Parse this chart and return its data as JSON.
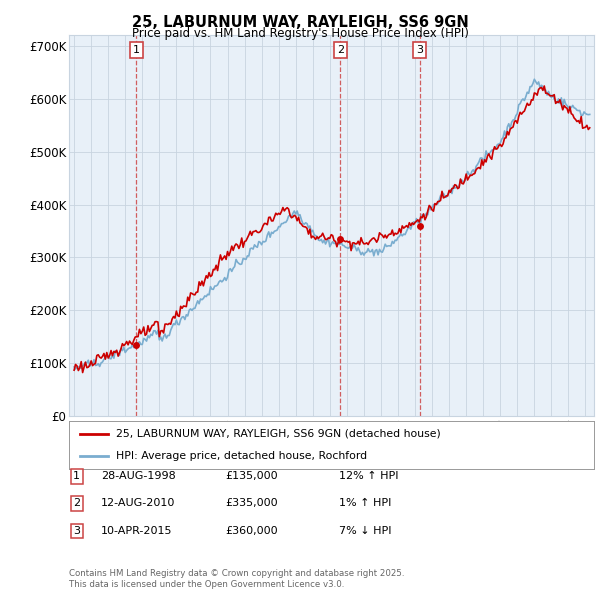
{
  "title": "25, LABURNUM WAY, RAYLEIGH, SS6 9GN",
  "subtitle": "Price paid vs. HM Land Registry's House Price Index (HPI)",
  "legend_label_red": "25, LABURNUM WAY, RAYLEIGH, SS6 9GN (detached house)",
  "legend_label_blue": "HPI: Average price, detached house, Rochford",
  "footer": "Contains HM Land Registry data © Crown copyright and database right 2025.\nThis data is licensed under the Open Government Licence v3.0.",
  "sales": [
    {
      "num": 1,
      "date": "28-AUG-1998",
      "price": 135000,
      "hpi_pct": "12% ↑ HPI",
      "year": 1998.65
    },
    {
      "num": 2,
      "date": "12-AUG-2010",
      "price": 335000,
      "hpi_pct": "1% ↑ HPI",
      "year": 2010.62
    },
    {
      "num": 3,
      "date": "10-APR-2015",
      "price": 360000,
      "hpi_pct": "7% ↓ HPI",
      "year": 2015.27
    }
  ],
  "red_color": "#cc0000",
  "blue_color": "#7aadcf",
  "chart_bg": "#e8f0f8",
  "dashed_color": "#cc4444",
  "background_color": "#ffffff",
  "grid_color": "#c8d4e0",
  "ylim": [
    0,
    720000
  ],
  "yticks": [
    0,
    100000,
    200000,
    300000,
    400000,
    500000,
    600000,
    700000
  ],
  "ytick_labels": [
    "£0",
    "£100K",
    "£200K",
    "£300K",
    "£400K",
    "£500K",
    "£600K",
    "£700K"
  ],
  "xlim_start": 1994.7,
  "xlim_end": 2025.5,
  "n_months": 364
}
